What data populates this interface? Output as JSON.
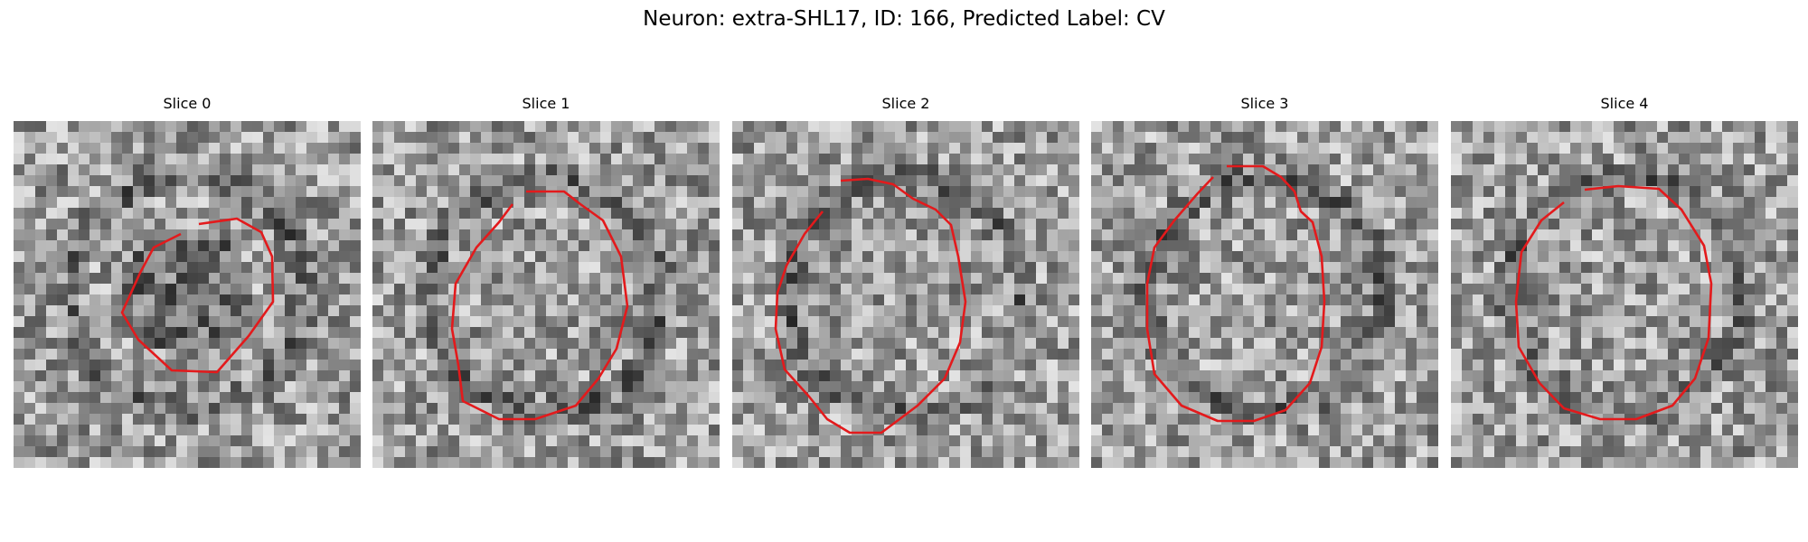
{
  "figure": {
    "title": "Neuron: extra-SHL17, ID: 166, Predicted Label: CV",
    "contour_color": "#e31a1c",
    "panels": [
      {
        "title": "Slice 0"
      },
      {
        "title": "Slice 1"
      },
      {
        "title": "Slice 2"
      },
      {
        "title": "Slice 3"
      },
      {
        "title": "Slice 4"
      }
    ]
  }
}
